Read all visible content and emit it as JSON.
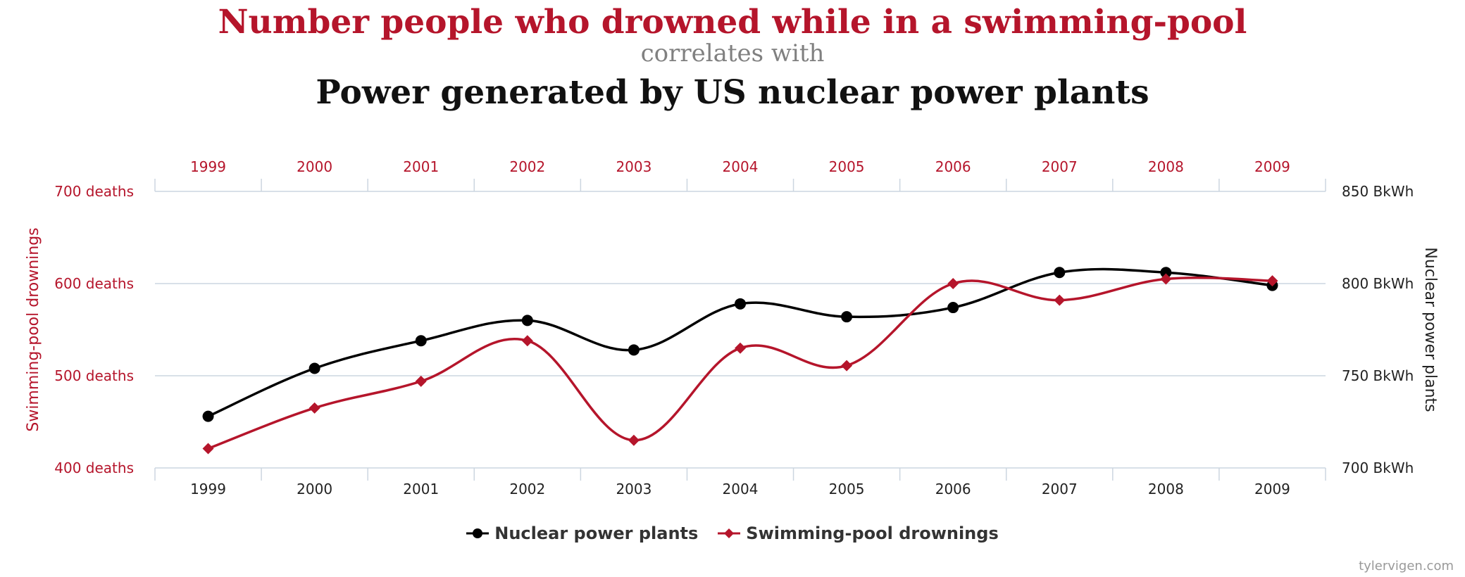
{
  "titles": {
    "primary": "Number people who drowned while in a swimming-pool",
    "connector": "correlates with",
    "secondary": "Power generated by US nuclear power plants"
  },
  "colors": {
    "drownings": "#b5152b",
    "nuclear": "#000000",
    "grid": "#ccd6e0",
    "axis_text": "#222222"
  },
  "chart_data": {
    "type": "line",
    "categories": [
      "1999",
      "2000",
      "2001",
      "2002",
      "2003",
      "2004",
      "2005",
      "2006",
      "2007",
      "2008",
      "2009"
    ],
    "series": [
      {
        "name": "Nuclear power plants",
        "axis": "right",
        "marker": "circle",
        "unit": "BkWh",
        "values": [
          728,
          754,
          769,
          780,
          764,
          789,
          782,
          787,
          806,
          806,
          799
        ]
      },
      {
        "name": "Swimming-pool drownings",
        "axis": "left",
        "marker": "diamond",
        "unit": "deaths",
        "values": [
          421,
          465,
          494,
          538,
          430,
          530,
          511,
          600,
          582,
          605,
          603
        ]
      }
    ],
    "y_left": {
      "label": "Swimming-pool drownings",
      "min": 400,
      "max": 700,
      "ticks": [
        "400 deaths",
        "500 deaths",
        "600 deaths",
        "700 deaths"
      ]
    },
    "y_right": {
      "label": "Nuclear power plants",
      "min": 700,
      "max": 850,
      "ticks": [
        "700 BkWh",
        "750 BkWh",
        "800 BkWh",
        "850 BkWh"
      ]
    },
    "legend_position": "bottom-center",
    "grid": true
  },
  "credit": "tylervigen.com"
}
